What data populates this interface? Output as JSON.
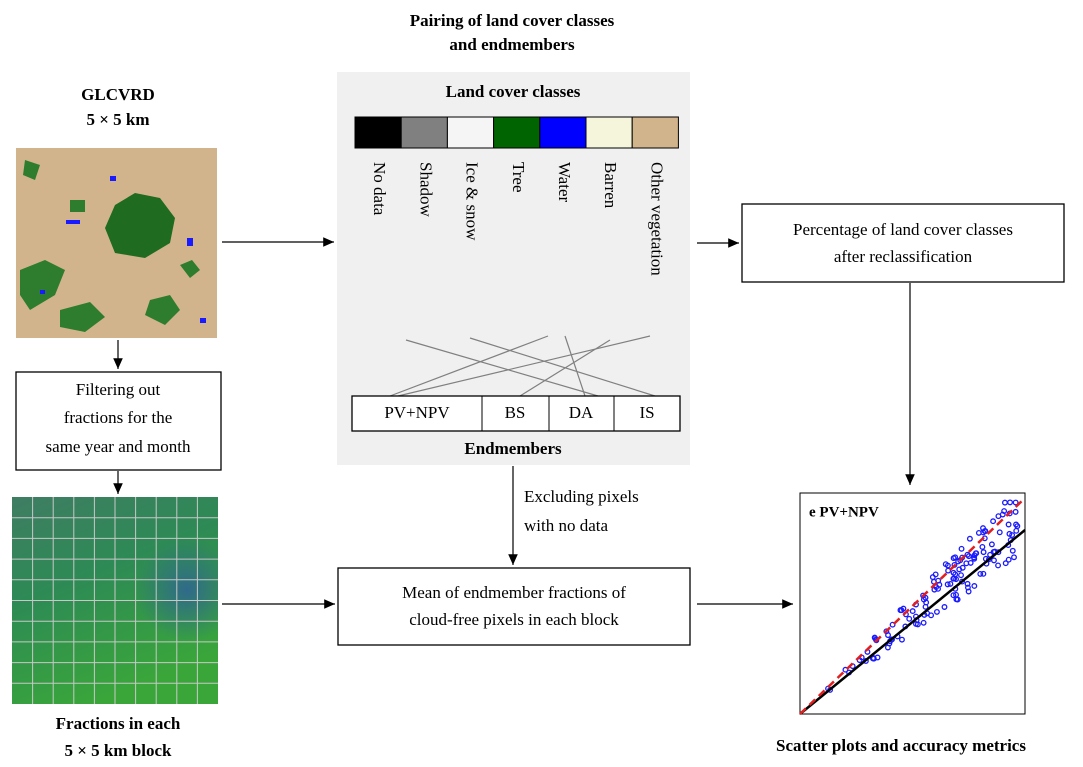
{
  "title": [
    "Pairing of land cover classes",
    "and endmembers"
  ],
  "source": {
    "title": [
      "GLCVRD",
      "5 × 5 km"
    ]
  },
  "land_cover": {
    "title": "Land cover classes",
    "classes": [
      "No data",
      "Shadow",
      "Ice & snow",
      "Tree",
      "Water",
      "Barren",
      "Other vegetation"
    ]
  },
  "endmembers": {
    "title": "Endmembers",
    "items": [
      "PV+NPV",
      "BS",
      "DA",
      "IS"
    ]
  },
  "steps": {
    "filtering": [
      "Filtering out",
      "fractions for the",
      "same year and month"
    ],
    "excluding": [
      "Excluding pixels",
      "with no data"
    ],
    "percentage": [
      "Percentage of land cover classes",
      "after reclassification"
    ],
    "mean": [
      "Mean of endmember fractions of",
      "cloud-free pixels in each block"
    ]
  },
  "fractions": {
    "title": [
      "Fractions in each",
      "5 × 5 km block"
    ]
  },
  "scatter": {
    "panel_label": "e PV+NPV",
    "title": "Scatter plots and accuracy metrics"
  }
}
